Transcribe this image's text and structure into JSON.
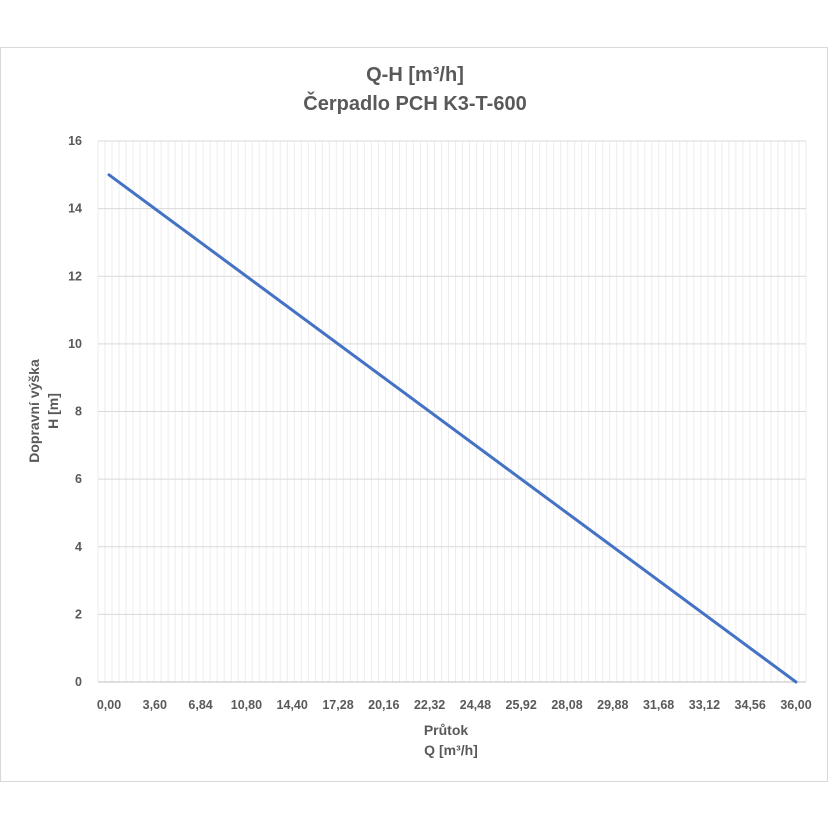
{
  "chart_data": {
    "type": "line",
    "title": "Q-H  [m³/h]",
    "subtitle": "Čerpadlo PCH K3-T-600",
    "xlabel_line1": "Průtok",
    "xlabel_line2": "Q [m³/h]",
    "ylabel_line1": "Dopravní výška",
    "ylabel_line2": "H [m]",
    "x_tick_labels": [
      "0,00",
      "3,60",
      "6,84",
      "10,80",
      "14,40",
      "17,28",
      "20,16",
      "22,32",
      "24,48",
      "25,92",
      "28,08",
      "29,88",
      "31,68",
      "33,12",
      "34,56",
      "36,00"
    ],
    "x_range": [
      0,
      36
    ],
    "ylim": [
      0,
      16
    ],
    "y_ticks": [
      0,
      2,
      4,
      6,
      8,
      10,
      12,
      14,
      16
    ],
    "grid": true,
    "line_color": "#4472c4",
    "series": [
      {
        "x": [
          0,
          36
        ],
        "y": [
          15,
          0
        ]
      }
    ]
  }
}
